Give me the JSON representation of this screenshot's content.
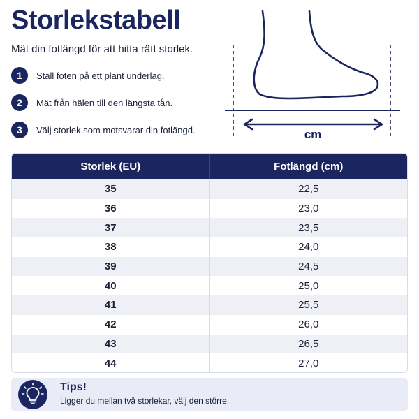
{
  "header": {
    "title": "Storlekstabell",
    "subtitle": "Mät din fotlängd för att hitta rätt storlek."
  },
  "steps": [
    {
      "number": "1",
      "text": "Ställ foten på ett plant underlag."
    },
    {
      "number": "2",
      "text": "Mät från hälen till den längsta tån."
    },
    {
      "number": "3",
      "text": "Välj storlek som motsvarar din fotlängd."
    }
  ],
  "illustration": {
    "unit_label": "cm",
    "icon": "foot-measure-icon"
  },
  "table": {
    "headers": [
      "Storlek (EU)",
      "Fotlängd (cm)"
    ],
    "rows": [
      {
        "size": "35",
        "length": "22,5"
      },
      {
        "size": "36",
        "length": "23,0"
      },
      {
        "size": "37",
        "length": "23,5"
      },
      {
        "size": "38",
        "length": "24,0"
      },
      {
        "size": "39",
        "length": "24,5"
      },
      {
        "size": "40",
        "length": "25,0"
      },
      {
        "size": "41",
        "length": "25,5"
      },
      {
        "size": "42",
        "length": "26,0"
      },
      {
        "size": "43",
        "length": "26,5"
      },
      {
        "size": "44",
        "length": "27,0"
      }
    ]
  },
  "tips": {
    "title": "Tips!",
    "text": "Ligger du mellan två storlekar, välj den större.",
    "icon": "lightbulb-icon"
  },
  "colors": {
    "primary": "#1b2560",
    "row_alt": "#eef0f5",
    "tips_bg": "#e9ebf7"
  }
}
